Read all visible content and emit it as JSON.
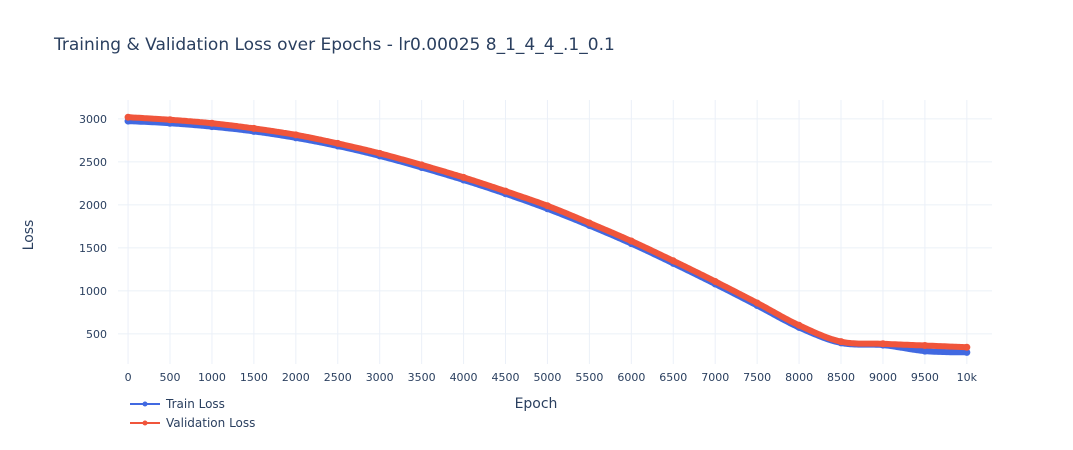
{
  "chart_data": {
    "type": "line",
    "title": "Training & Validation Loss over Epochs  - lr0.00025 8_1_4_4_.1_0.1",
    "xlabel": "Epoch",
    "ylabel": "Loss",
    "xlim": [
      -120,
      10300
    ],
    "ylim": [
      150,
      3220
    ],
    "x_ticks": [
      {
        "value": 0,
        "label": "0"
      },
      {
        "value": 500,
        "label": "500"
      },
      {
        "value": 1000,
        "label": "1000"
      },
      {
        "value": 1500,
        "label": "1500"
      },
      {
        "value": 2000,
        "label": "2000"
      },
      {
        "value": 2500,
        "label": "2500"
      },
      {
        "value": 3000,
        "label": "3000"
      },
      {
        "value": 3500,
        "label": "3500"
      },
      {
        "value": 4000,
        "label": "4000"
      },
      {
        "value": 4500,
        "label": "4500"
      },
      {
        "value": 5000,
        "label": "5000"
      },
      {
        "value": 5500,
        "label": "5500"
      },
      {
        "value": 6000,
        "label": "6000"
      },
      {
        "value": 6500,
        "label": "6500"
      },
      {
        "value": 7000,
        "label": "7000"
      },
      {
        "value": 7500,
        "label": "7500"
      },
      {
        "value": 8000,
        "label": "8000"
      },
      {
        "value": 8500,
        "label": "8500"
      },
      {
        "value": 9000,
        "label": "9000"
      },
      {
        "value": 9500,
        "label": "9500"
      },
      {
        "value": 10000,
        "label": "10k"
      }
    ],
    "y_ticks": [
      {
        "value": 500,
        "label": "500"
      },
      {
        "value": 1000,
        "label": "1000"
      },
      {
        "value": 1500,
        "label": "1500"
      },
      {
        "value": 2000,
        "label": "2000"
      },
      {
        "value": 2500,
        "label": "2500"
      },
      {
        "value": 3000,
        "label": "3000"
      }
    ],
    "grid": true,
    "legend_position": "bottom-left",
    "x": [
      0,
      500,
      1000,
      1500,
      2000,
      2500,
      3000,
      3500,
      4000,
      4500,
      5000,
      5500,
      6000,
      6500,
      7000,
      7500,
      8000,
      8500,
      9000,
      9500,
      10000
    ],
    "series": [
      {
        "name": "Train Loss",
        "color": "#4169e1",
        "values": [
          2975,
          2950,
          2910,
          2855,
          2780,
          2685,
          2570,
          2435,
          2290,
          2130,
          1955,
          1760,
          1550,
          1320,
          1080,
          830,
          575,
          395,
          370,
          300,
          285
        ]
      },
      {
        "name": "Validation Loss",
        "color": "#f0553b",
        "values": [
          3020,
          2990,
          2950,
          2890,
          2815,
          2715,
          2600,
          2465,
          2320,
          2160,
          1990,
          1790,
          1580,
          1350,
          1110,
          860,
          600,
          410,
          385,
          365,
          345
        ]
      }
    ]
  }
}
